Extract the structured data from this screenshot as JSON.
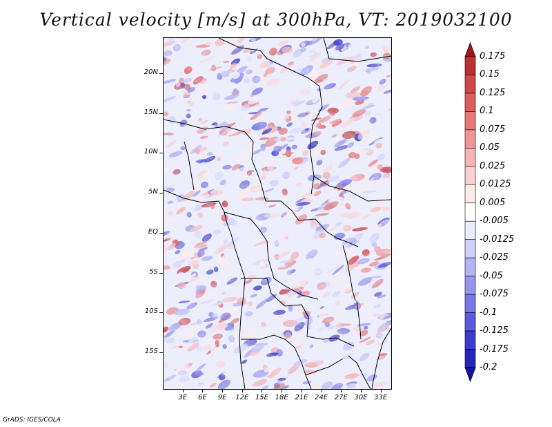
{
  "title": "Vertical velocity [m/s] at 300hPa, VT: 2019032100",
  "credit": "GrADS: IGES/COLA",
  "map": {
    "lat_labels": [
      "20N",
      "15N",
      "10N",
      "5N",
      "EQ",
      "5S",
      "10S",
      "15S"
    ],
    "lon_labels": [
      "3E",
      "6E",
      "9E",
      "12E",
      "15E",
      "18E",
      "21E",
      "24E",
      "27E",
      "30E",
      "33E"
    ],
    "lat_values": [
      20,
      15,
      10,
      5,
      0,
      -5,
      -10,
      -15
    ],
    "lon_values": [
      3,
      6,
      9,
      12,
      15,
      18,
      21,
      24,
      27,
      30,
      33
    ],
    "lon_range": [
      0,
      34.5
    ],
    "lat_range": [
      -19.5,
      24.5
    ]
  },
  "colorbar": {
    "labels": [
      "0.175",
      "0.15",
      "0.125",
      "0.1",
      "0.075",
      "0.05",
      "0.025",
      "0.0125",
      "0.005",
      "-0.005",
      "-0.0125",
      "-0.025",
      "-0.05",
      "-0.075",
      "-0.1",
      "-0.125",
      "-0.175",
      "-0.2"
    ],
    "colors": [
      "#a8141e",
      "#be2f34",
      "#d04546",
      "#de5c5c",
      "#e87878",
      "#f09696",
      "#f6b4b4",
      "#fad0d0",
      "#fdebeb",
      "#ffffff",
      "#ebebfd",
      "#d0d0fa",
      "#b4b4f6",
      "#9696f0",
      "#7878e8",
      "#5a5ade",
      "#3c3cd0",
      "#2424be",
      "#1414a8"
    ]
  }
}
